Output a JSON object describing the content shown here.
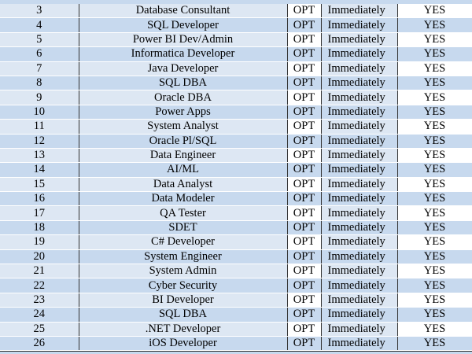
{
  "table": {
    "rows": [
      [
        3,
        "Database Consultant",
        "OPT",
        "Immediately",
        "YES"
      ],
      [
        4,
        "SQL Developer",
        "OPT",
        "Immediately",
        "YES"
      ],
      [
        5,
        "Power BI Dev/Admin",
        "OPT",
        "Immediately",
        "YES"
      ],
      [
        6,
        "Informatica Developer",
        "OPT",
        "Immediately",
        "YES"
      ],
      [
        7,
        "Java Developer",
        "OPT",
        "Immediately",
        "YES"
      ],
      [
        8,
        "SQL DBA",
        "OPT",
        "Immediately",
        "YES"
      ],
      [
        9,
        "Oracle DBA",
        "OPT",
        "Immediately",
        "YES"
      ],
      [
        10,
        "Power Apps",
        "OPT",
        "Immediately",
        "YES"
      ],
      [
        11,
        "System Analyst",
        "OPT",
        "Immediately",
        "YES"
      ],
      [
        12,
        "Oracle Pl/SQL",
        "OPT",
        "Immediately",
        "YES"
      ],
      [
        13,
        "Data Engineer",
        "OPT",
        "Immediately",
        "YES"
      ],
      [
        14,
        "AI/ML",
        "OPT",
        "Immediately",
        "YES"
      ],
      [
        15,
        "Data Analyst",
        "OPT",
        "Immediately",
        "YES"
      ],
      [
        16,
        "Data Modeler",
        "OPT",
        "Immediately",
        "YES"
      ],
      [
        17,
        "QA Tester",
        "OPT",
        "Immediately",
        "YES"
      ],
      [
        18,
        "SDET",
        "OPT",
        "Immediately",
        "YES"
      ],
      [
        19,
        "C# Developer",
        "OPT",
        "Immediately",
        "YES"
      ],
      [
        20,
        "System Engineer",
        "OPT",
        "Immediately",
        "YES"
      ],
      [
        21,
        "System Admin",
        "OPT",
        "Immediately",
        "YES"
      ],
      [
        22,
        "Cyber Security",
        "OPT",
        "Immediately",
        "YES"
      ],
      [
        23,
        "BI Developer",
        "OPT",
        "Immediately",
        "YES"
      ],
      [
        24,
        "SQL DBA",
        "OPT",
        "Immediately",
        "YES"
      ],
      [
        25,
        ".NET Developer",
        "OPT",
        "Immediately",
        "YES"
      ],
      [
        26,
        "iOS Developer",
        "OPT",
        "Immediately",
        "YES"
      ]
    ]
  }
}
